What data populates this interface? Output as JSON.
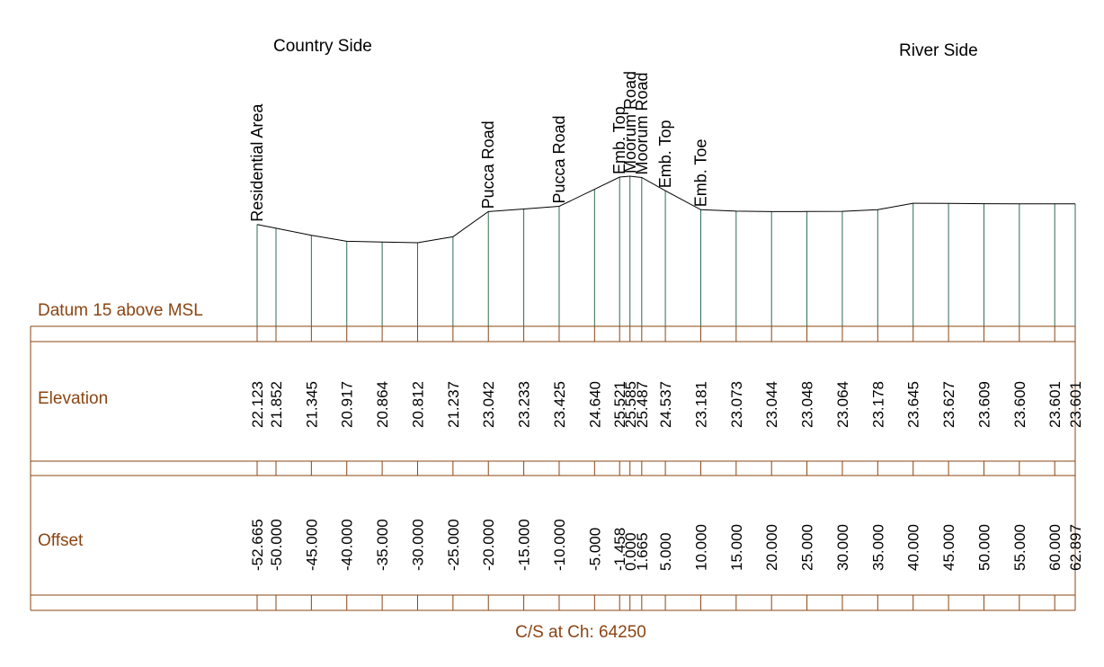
{
  "header": {
    "left_side": "Country Side",
    "right_side": "River Side"
  },
  "table": {
    "datum_label": "Datum 15 above MSL",
    "elevation_label": "Elevation",
    "offset_label": "Offset"
  },
  "footer": {
    "caption": "C/S at Ch: 64250"
  },
  "colors": {
    "table_lines": "#8B4513",
    "row_labels": "#8B4513",
    "verticals": "#2E6B4F",
    "profile": "#000000"
  },
  "chart_data": {
    "type": "line",
    "datum": 15,
    "points": [
      {
        "offset": -52.665,
        "offset_label": "-52.665",
        "elevation": 22.123,
        "elevation_label": "22.123",
        "feature": "Residential Area"
      },
      {
        "offset": -50.0,
        "offset_label": "-50.000",
        "elevation": 21.852,
        "elevation_label": "21.852",
        "feature": ""
      },
      {
        "offset": -45.0,
        "offset_label": "-45.000",
        "elevation": 21.345,
        "elevation_label": "21.345",
        "feature": ""
      },
      {
        "offset": -40.0,
        "offset_label": "-40.000",
        "elevation": 20.917,
        "elevation_label": "20.917",
        "feature": ""
      },
      {
        "offset": -35.0,
        "offset_label": "-35.000",
        "elevation": 20.864,
        "elevation_label": "20.864",
        "feature": ""
      },
      {
        "offset": -30.0,
        "offset_label": "-30.000",
        "elevation": 20.812,
        "elevation_label": "20.812",
        "feature": ""
      },
      {
        "offset": -25.0,
        "offset_label": "-25.000",
        "elevation": 21.237,
        "elevation_label": "21.237",
        "feature": ""
      },
      {
        "offset": -20.0,
        "offset_label": "-20.000",
        "elevation": 23.042,
        "elevation_label": "23.042",
        "feature": "Pucca Road"
      },
      {
        "offset": -15.0,
        "offset_label": "-15.000",
        "elevation": 23.233,
        "elevation_label": "23.233",
        "feature": ""
      },
      {
        "offset": -10.0,
        "offset_label": "-10.000",
        "elevation": 23.425,
        "elevation_label": "23.425",
        "feature": "Pucca Road"
      },
      {
        "offset": -5.0,
        "offset_label": "-5.000",
        "elevation": 24.64,
        "elevation_label": "24.640",
        "feature": ""
      },
      {
        "offset": -1.458,
        "offset_label": "-1.458",
        "elevation": 25.521,
        "elevation_label": "25.521",
        "feature": "Emb. Top"
      },
      {
        "offset": 0.0,
        "offset_label": "0.000",
        "elevation": 25.585,
        "elevation_label": "25.585",
        "feature": "Moorum Road"
      },
      {
        "offset": 1.665,
        "offset_label": "1.665",
        "elevation": 25.487,
        "elevation_label": "25.487",
        "feature": "Moorum Road"
      },
      {
        "offset": 5.0,
        "offset_label": "5.000",
        "elevation": 24.537,
        "elevation_label": "24.537",
        "feature": "Emb. Top"
      },
      {
        "offset": 10.0,
        "offset_label": "10.000",
        "elevation": 23.181,
        "elevation_label": "23.181",
        "feature": "Emb. Toe"
      },
      {
        "offset": 15.0,
        "offset_label": "15.000",
        "elevation": 23.073,
        "elevation_label": "23.073",
        "feature": ""
      },
      {
        "offset": 20.0,
        "offset_label": "20.000",
        "elevation": 23.044,
        "elevation_label": "23.044",
        "feature": ""
      },
      {
        "offset": 25.0,
        "offset_label": "25.000",
        "elevation": 23.048,
        "elevation_label": "23.048",
        "feature": ""
      },
      {
        "offset": 30.0,
        "offset_label": "30.000",
        "elevation": 23.064,
        "elevation_label": "23.064",
        "feature": ""
      },
      {
        "offset": 35.0,
        "offset_label": "35.000",
        "elevation": 23.178,
        "elevation_label": "23.178",
        "feature": ""
      },
      {
        "offset": 40.0,
        "offset_label": "40.000",
        "elevation": 23.645,
        "elevation_label": "23.645",
        "feature": ""
      },
      {
        "offset": 45.0,
        "offset_label": "45.000",
        "elevation": 23.627,
        "elevation_label": "23.627",
        "feature": ""
      },
      {
        "offset": 50.0,
        "offset_label": "50.000",
        "elevation": 23.609,
        "elevation_label": "23.609",
        "feature": ""
      },
      {
        "offset": 55.0,
        "offset_label": "55.000",
        "elevation": 23.6,
        "elevation_label": "23.600",
        "feature": ""
      },
      {
        "offset": 60.0,
        "offset_label": "60.000",
        "elevation": 23.601,
        "elevation_label": "23.601",
        "feature": ""
      },
      {
        "offset": 62.897,
        "offset_label": "62.897",
        "elevation": 23.601,
        "elevation_label": "23.601",
        "feature": ""
      }
    ]
  }
}
